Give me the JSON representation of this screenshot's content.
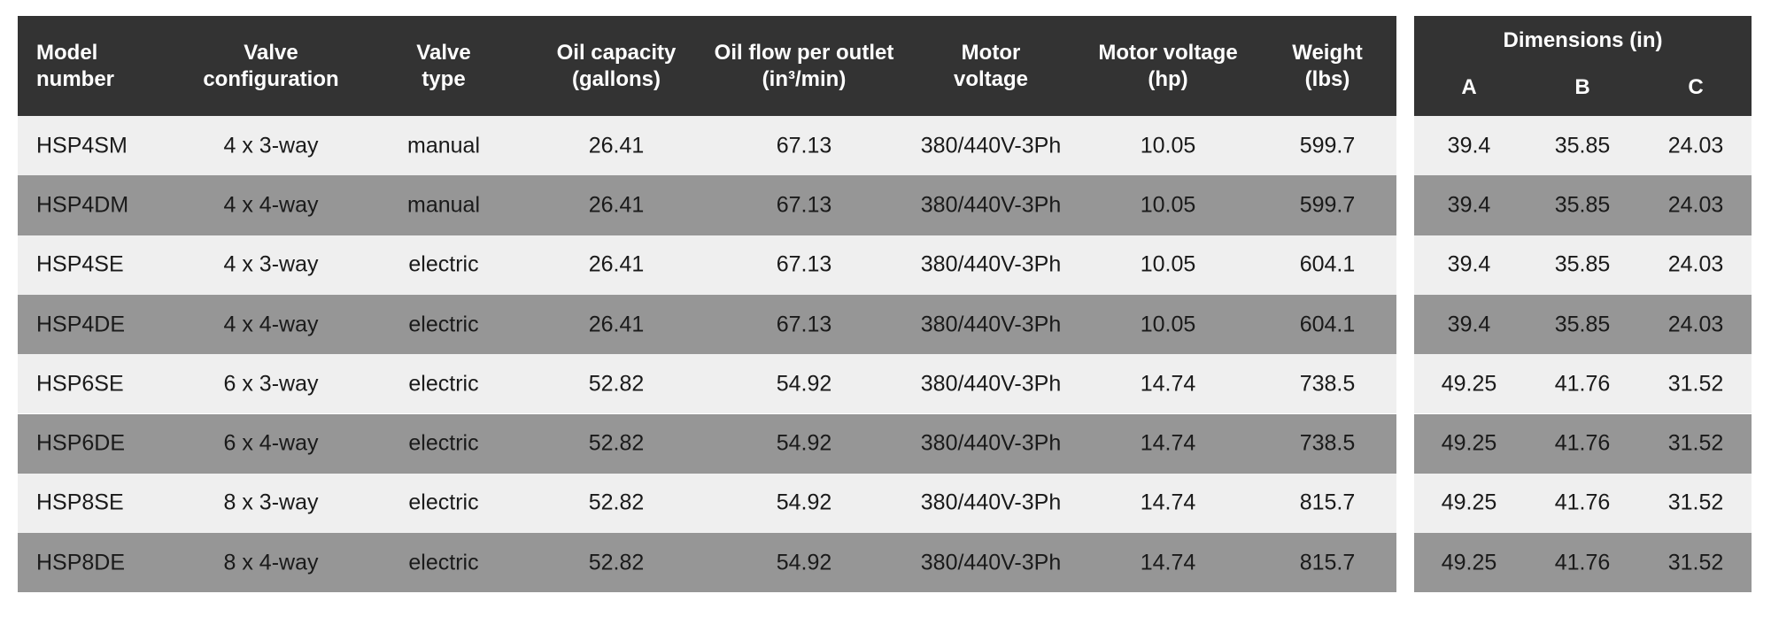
{
  "table": {
    "headers": [
      [
        "Model",
        "number"
      ],
      [
        "Valve",
        "configuration"
      ],
      [
        "Valve",
        "type"
      ],
      [
        "Oil capacity",
        "(gallons)"
      ],
      [
        "Oil flow per outlet",
        "(in³/min)"
      ],
      [
        "Motor",
        "voltage"
      ],
      [
        "Motor voltage",
        "(hp)"
      ],
      [
        "Weight",
        "(lbs)"
      ]
    ],
    "dimensions_header": {
      "title": "Dimensions (in)",
      "columns": [
        "A",
        "B",
        "C"
      ]
    },
    "rows": [
      [
        "HSP4SM",
        "4 x 3-way",
        "manual",
        "26.41",
        "67.13",
        "380/440V-3Ph",
        "10.05",
        "599.7",
        "39.4",
        "35.85",
        "24.03"
      ],
      [
        "HSP4DM",
        "4 x 4-way",
        "manual",
        "26.41",
        "67.13",
        "380/440V-3Ph",
        "10.05",
        "599.7",
        "39.4",
        "35.85",
        "24.03"
      ],
      [
        "HSP4SE",
        "4 x 3-way",
        "electric",
        "26.41",
        "67.13",
        "380/440V-3Ph",
        "10.05",
        "604.1",
        "39.4",
        "35.85",
        "24.03"
      ],
      [
        "HSP4DE",
        "4 x 4-way",
        "electric",
        "26.41",
        "67.13",
        "380/440V-3Ph",
        "10.05",
        "604.1",
        "39.4",
        "35.85",
        "24.03"
      ],
      [
        "HSP6SE",
        "6 x 3-way",
        "electric",
        "52.82",
        "54.92",
        "380/440V-3Ph",
        "14.74",
        "738.5",
        "49.25",
        "41.76",
        "31.52"
      ],
      [
        "HSP6DE",
        "6 x 4-way",
        "electric",
        "52.82",
        "54.92",
        "380/440V-3Ph",
        "14.74",
        "738.5",
        "49.25",
        "41.76",
        "31.52"
      ],
      [
        "HSP8SE",
        "8 x 3-way",
        "electric",
        "52.82",
        "54.92",
        "380/440V-3Ph",
        "14.74",
        "815.7",
        "49.25",
        "41.76",
        "31.52"
      ],
      [
        "HSP8DE",
        "8 x 4-way",
        "electric",
        "52.82",
        "54.92",
        "380/440V-3Ph",
        "14.74",
        "815.7",
        "49.25",
        "41.76",
        "31.52"
      ]
    ]
  }
}
